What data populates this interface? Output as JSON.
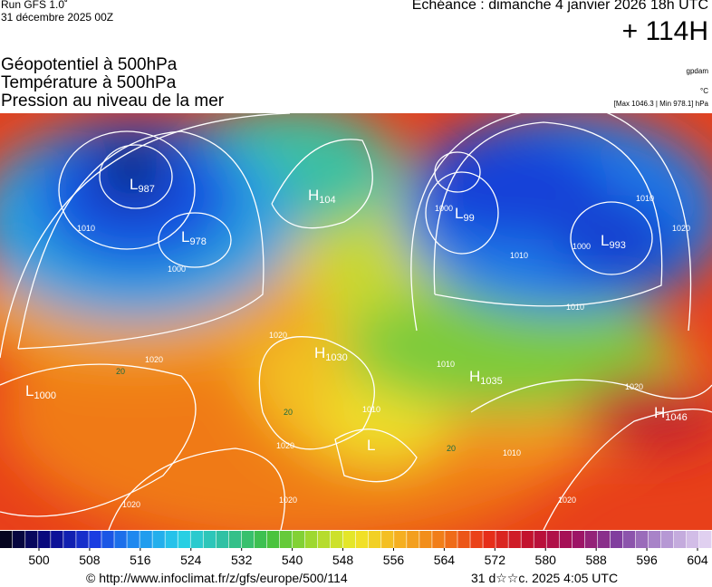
{
  "header": {
    "run": "Run GFS 1.0˚",
    "run_date": "31 décembre 2025 00Z",
    "valid": "Echéance : dimanche 4 janvier 2026 18h UTC",
    "lead": "+ 114H"
  },
  "legend": {
    "lines": [
      "Géopotentiel à 500hPa",
      "Température à 500hPa",
      "Pression au niveau de la mer"
    ],
    "unit_geo": "gpdam",
    "unit_temp": "°C",
    "pressure_range": "[Max 1046.3 | Min 978.1] hPa"
  },
  "map": {
    "centers": [
      {
        "kind": "L",
        "value": 987
      },
      {
        "kind": "L",
        "value": 978
      },
      {
        "kind": "H",
        "value": "104"
      },
      {
        "kind": "L",
        "value": "99"
      },
      {
        "kind": "L",
        "value": 993
      },
      {
        "kind": "H",
        "value": 1030
      },
      {
        "kind": "L",
        "value": 1000
      },
      {
        "kind": "H",
        "value": 1035
      },
      {
        "kind": "H",
        "value": 1046
      },
      {
        "kind": "L",
        "value": null
      }
    ],
    "isobar_labels": [
      1000,
      1010,
      1000,
      1010,
      1020,
      1020,
      1020,
      1010,
      1000,
      1010,
      1010,
      1020,
      1020,
      1020,
      1010,
      1010,
      1020,
      1020
    ],
    "temp_labels": [
      20,
      20,
      20
    ]
  },
  "colorbar": {
    "ticks": [
      500,
      508,
      516,
      524,
      532,
      540,
      548,
      556,
      564,
      572,
      580,
      588,
      596,
      604
    ]
  },
  "footer": {
    "source": "© http://www.infoclimat.fr/z/gfs/europe/500/114",
    "generated": "31 d☆☆c. 2025  4:05 UTC"
  }
}
